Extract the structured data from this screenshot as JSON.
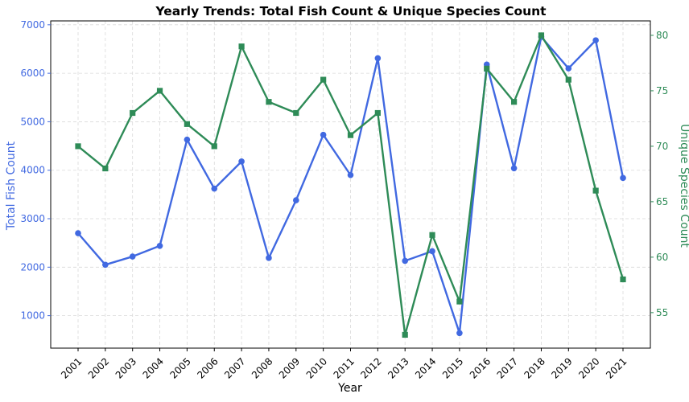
{
  "chart_data": {
    "type": "line",
    "title": "Yearly Trends: Total Fish Count & Unique Species Count",
    "xlabel": "Year",
    "ylabel_left": "Total Fish Count",
    "ylabel_right": "Unique Species Count",
    "categories": [
      "2001",
      "2002",
      "2003",
      "2004",
      "2005",
      "2006",
      "2007",
      "2008",
      "2009",
      "2010",
      "2011",
      "2012",
      "2013",
      "2014",
      "2015",
      "2016",
      "2017",
      "2018",
      "2019",
      "2020",
      "2021"
    ],
    "ylim_left": [
      330,
      7080
    ],
    "ylim_right": [
      51.8,
      81.3
    ],
    "yticks_left": [
      1000,
      2000,
      3000,
      4000,
      5000,
      6000,
      7000
    ],
    "yticks_right": [
      55,
      60,
      65,
      70,
      75,
      80
    ],
    "grid": true,
    "series": [
      {
        "name": "Total Fish Count",
        "axis": "left",
        "color": "#4169e1",
        "marker": "circle",
        "values": [
          2700,
          2050,
          2220,
          2440,
          4630,
          3620,
          4180,
          2190,
          3380,
          4730,
          3900,
          6310,
          2130,
          2330,
          640,
          6180,
          4040,
          6750,
          6100,
          6680,
          3840
        ]
      },
      {
        "name": "Unique Species Count",
        "axis": "right",
        "color": "#2e8b57",
        "marker": "square",
        "values": [
          70,
          68,
          73,
          75,
          72,
          70,
          79,
          74,
          73,
          76,
          71,
          73,
          53,
          62,
          56,
          77,
          74,
          80,
          76,
          66,
          58
        ]
      }
    ]
  }
}
